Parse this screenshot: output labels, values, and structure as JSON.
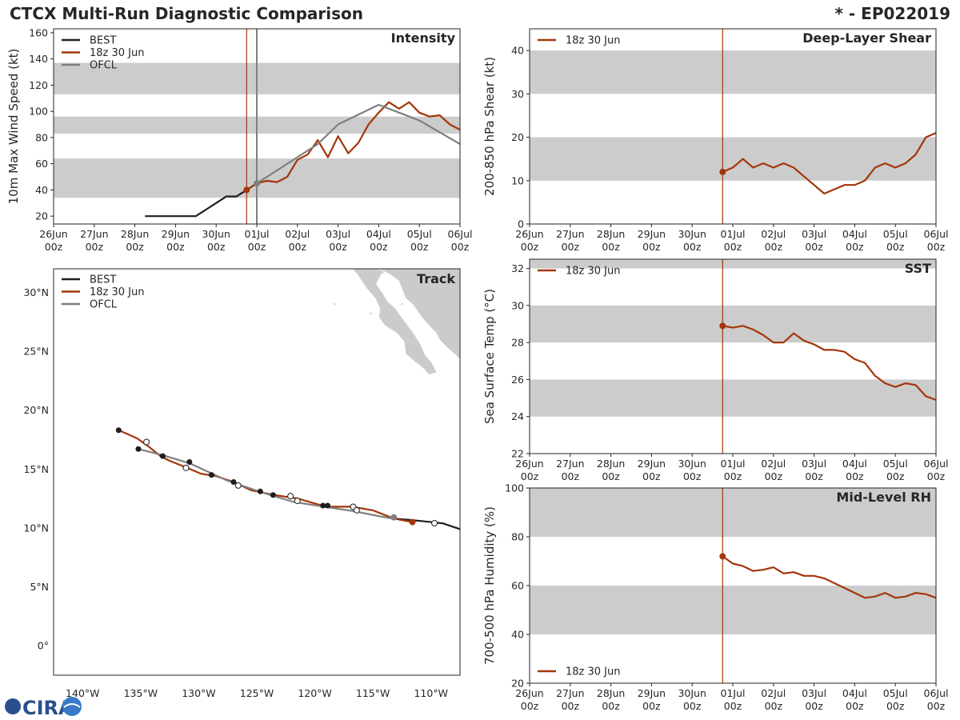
{
  "header": {
    "title": "CTCX Multi-Run Diagnostic Comparison",
    "storm_id": "* - EP022019"
  },
  "colors": {
    "best": "#1e1e1e",
    "run": "#a3360a",
    "ofcl": "#7f7f7f",
    "band": "#cccccc",
    "land": "#cbcbcb"
  },
  "time_axis": {
    "ticks": [
      {
        "day": "26Jun",
        "hour": "00z"
      },
      {
        "day": "27Jun",
        "hour": "00z"
      },
      {
        "day": "28Jun",
        "hour": "00z"
      },
      {
        "day": "29Jun",
        "hour": "00z"
      },
      {
        "day": "30Jun",
        "hour": "00z"
      },
      {
        "day": "01Jul",
        "hour": "00z"
      },
      {
        "day": "02Jul",
        "hour": "00z"
      },
      {
        "day": "03Jul",
        "hour": "00z"
      },
      {
        "day": "04Jul",
        "hour": "00z"
      },
      {
        "day": "05Jul",
        "hour": "00z"
      },
      {
        "day": "06Jul",
        "hour": "00z"
      }
    ],
    "xlim_hours": [
      0,
      240
    ],
    "init_hour": 114,
    "ofcl_init_hour": 120
  },
  "chart_data": [
    {
      "id": "intensity",
      "type": "line",
      "title": "Intensity",
      "ylabel": "10m Max Wind Speed (kt)",
      "ylim": [
        14,
        163
      ],
      "yticks": [
        20,
        40,
        60,
        80,
        100,
        120,
        140,
        160
      ],
      "bands": [
        [
          34,
          64
        ],
        [
          83,
          96
        ],
        [
          113,
          137
        ]
      ],
      "legend": [
        "BEST",
        "18z 30 Jun",
        "OFCL"
      ],
      "series": [
        {
          "name": "BEST",
          "color_key": "best",
          "x": [
            54,
            60,
            66,
            72,
            78,
            84,
            90,
            96,
            102,
            108,
            114,
            120
          ],
          "y": [
            20,
            20,
            20,
            20,
            20,
            20,
            25,
            30,
            35,
            35,
            40,
            45
          ]
        },
        {
          "name": "18z 30 Jun",
          "color_key": "run",
          "x": [
            114,
            120,
            126,
            132,
            138,
            144,
            150,
            156,
            162,
            168,
            174,
            180,
            186,
            192,
            198,
            204,
            210,
            216,
            222,
            228,
            234,
            240
          ],
          "y": [
            40,
            45,
            47,
            46,
            50,
            63,
            67,
            78,
            65,
            81,
            68,
            76,
            90,
            99,
            107,
            102,
            107,
            99,
            96,
            97,
            90,
            86
          ]
        },
        {
          "name": "OFCL",
          "color_key": "ofcl",
          "x": [
            120,
            132,
            144,
            156,
            168,
            192,
            204,
            216,
            240
          ],
          "y": [
            45,
            55,
            65,
            75,
            90,
            105,
            99,
            93,
            75
          ]
        }
      ],
      "markers": [
        {
          "series": "18z 30 Jun",
          "x": 114,
          "y": 40
        },
        {
          "series": "OFCL",
          "x": 120,
          "y": 45
        }
      ]
    },
    {
      "id": "shear",
      "type": "line",
      "title": "Deep-Layer Shear",
      "ylabel": "200-850 hPa Shear (kt)",
      "ylim": [
        0,
        45
      ],
      "yticks": [
        0,
        10,
        20,
        30,
        40
      ],
      "bands": [
        [
          10,
          20
        ],
        [
          30,
          40
        ]
      ],
      "legend": [
        "18z 30 Jun"
      ],
      "series": [
        {
          "name": "18z 30 Jun",
          "color_key": "run",
          "x": [
            114,
            120,
            126,
            132,
            138,
            144,
            150,
            156,
            162,
            168,
            174,
            180,
            186,
            192,
            198,
            204,
            210,
            216,
            222,
            228,
            234,
            240
          ],
          "y": [
            12,
            13,
            15,
            13,
            14,
            13,
            14,
            13,
            11,
            9,
            7,
            8,
            9,
            9,
            10,
            13,
            14,
            13,
            14,
            16,
            20,
            21
          ]
        }
      ],
      "markers": [
        {
          "series": "18z 30 Jun",
          "x": 114,
          "y": 12
        }
      ]
    },
    {
      "id": "sst",
      "type": "line",
      "title": "SST",
      "ylabel": "Sea Surface Temp (°C)",
      "ylim": [
        22,
        32.5
      ],
      "yticks": [
        22,
        24,
        26,
        28,
        30,
        32
      ],
      "bands": [
        [
          24,
          26
        ],
        [
          28,
          30
        ],
        [
          32,
          32.5
        ]
      ],
      "legend": [
        "18z 30 Jun"
      ],
      "series": [
        {
          "name": "18z 30 Jun",
          "color_key": "run",
          "x": [
            114,
            120,
            126,
            132,
            138,
            144,
            150,
            156,
            162,
            168,
            174,
            180,
            186,
            192,
            198,
            204,
            210,
            216,
            222,
            228,
            234,
            240
          ],
          "y": [
            28.9,
            28.8,
            28.9,
            28.7,
            28.4,
            28.0,
            28.0,
            28.5,
            28.1,
            27.9,
            27.6,
            27.6,
            27.5,
            27.1,
            26.9,
            26.2,
            25.8,
            25.6,
            25.8,
            25.7,
            25.1,
            24.9
          ]
        }
      ],
      "markers": [
        {
          "series": "18z 30 Jun",
          "x": 114,
          "y": 28.9
        }
      ]
    },
    {
      "id": "rh",
      "type": "line",
      "title": "Mid-Level RH",
      "ylabel": "700-500 hPa Humidity (%)",
      "ylim": [
        20,
        100
      ],
      "yticks": [
        20,
        40,
        60,
        80,
        100
      ],
      "bands": [
        [
          40,
          60
        ],
        [
          80,
          100
        ]
      ],
      "legend": [
        "18z 30 Jun"
      ],
      "series": [
        {
          "name": "18z 30 Jun",
          "color_key": "run",
          "x": [
            114,
            120,
            126,
            132,
            138,
            144,
            150,
            156,
            162,
            168,
            174,
            180,
            186,
            192,
            198,
            204,
            210,
            216,
            222,
            228,
            234,
            240
          ],
          "y": [
            72,
            69,
            68,
            66,
            66.5,
            67.5,
            65,
            65.5,
            64,
            64,
            63,
            61,
            59,
            57,
            55,
            55.5,
            57,
            55,
            55.5,
            57,
            56.5,
            55
          ]
        }
      ],
      "markers": [
        {
          "series": "18z 30 Jun",
          "x": 114,
          "y": 72
        }
      ]
    },
    {
      "id": "track",
      "type": "scatter",
      "title": "Track",
      "xlim": [
        -142.5,
        -107.5
      ],
      "ylim": [
        -2.5,
        32
      ],
      "xticks": [
        {
          "v": -140,
          "label": "140°W"
        },
        {
          "v": -135,
          "label": "135°W"
        },
        {
          "v": -130,
          "label": "130°W"
        },
        {
          "v": -125,
          "label": "125°W"
        },
        {
          "v": -120,
          "label": "120°W"
        },
        {
          "v": -115,
          "label": "115°W"
        },
        {
          "v": -110,
          "label": "110°W"
        }
      ],
      "yticks": [
        {
          "v": 0,
          "label": "0°"
        },
        {
          "v": 5,
          "label": "5°N"
        },
        {
          "v": 10,
          "label": "10°N"
        },
        {
          "v": 15,
          "label": "15°N"
        },
        {
          "v": 20,
          "label": "20°N"
        },
        {
          "v": 25,
          "label": "25°N"
        },
        {
          "v": 30,
          "label": "30°N"
        }
      ],
      "legend": [
        "BEST",
        "18z 30 Jun",
        "OFCL"
      ],
      "series": [
        {
          "name": "BEST",
          "color_key": "best",
          "lon": [
            -107.5,
            -109,
            -110.5,
            -112,
            -113.3
          ],
          "lat": [
            9.9,
            10.4,
            10.55,
            10.7,
            10.8
          ]
        },
        {
          "name": "18z 30 Jun",
          "color_key": "run",
          "lon": [
            -111.6,
            -113.2,
            -115,
            -116.8,
            -119,
            -121.5,
            -123.5,
            -125.5,
            -127,
            -128.5,
            -129.8,
            -131,
            -132.5,
            -133.3,
            -134.3,
            -135.3,
            -136.2,
            -136.9
          ],
          "lat": [
            10.5,
            10.8,
            11.5,
            11.8,
            11.8,
            12.5,
            12.8,
            13.2,
            13.9,
            14.4,
            14.6,
            15.1,
            15.7,
            16.1,
            16.9,
            17.6,
            18.0,
            18.3
          ]
        },
        {
          "name": "OFCL",
          "color_key": "ofcl",
          "lon": [
            -113.3,
            -114.5,
            -116.5,
            -119.2,
            -121.8,
            -124.5,
            -127.5,
            -130.8,
            -133.2,
            -135.2
          ],
          "lat": [
            10.8,
            11.0,
            11.4,
            11.8,
            12.2,
            13.0,
            14.0,
            15.5,
            16.2,
            16.7
          ]
        }
      ],
      "points": [
        {
          "kind": "black",
          "lon": -136.9,
          "lat": 18.3
        },
        {
          "kind": "black",
          "lon": -135.2,
          "lat": 16.7
        },
        {
          "kind": "black",
          "lon": -133.1,
          "lat": 16.1
        },
        {
          "kind": "black",
          "lon": -130.8,
          "lat": 15.6
        },
        {
          "kind": "black",
          "lon": -128.9,
          "lat": 14.5
        },
        {
          "kind": "black",
          "lon": -127.0,
          "lat": 13.9
        },
        {
          "kind": "black",
          "lon": -124.7,
          "lat": 13.1
        },
        {
          "kind": "black",
          "lon": -123.6,
          "lat": 12.8
        },
        {
          "kind": "black",
          "lon": -119.3,
          "lat": 11.9
        },
        {
          "kind": "black",
          "lon": -118.9,
          "lat": 11.9
        },
        {
          "kind": "open",
          "lon": -134.5,
          "lat": 17.3
        },
        {
          "kind": "open",
          "lon": -131.1,
          "lat": 15.1
        },
        {
          "kind": "open",
          "lon": -126.6,
          "lat": 13.6
        },
        {
          "kind": "open",
          "lon": -122.1,
          "lat": 12.7
        },
        {
          "kind": "open",
          "lon": -121.5,
          "lat": 12.3
        },
        {
          "kind": "open",
          "lon": -116.7,
          "lat": 11.8
        },
        {
          "kind": "open",
          "lon": -116.4,
          "lat": 11.5
        },
        {
          "kind": "open",
          "lon": -109.7,
          "lat": 10.4
        },
        {
          "kind": "gray",
          "lon": -113.2,
          "lat": 10.9
        },
        {
          "kind": "run",
          "lon": -111.6,
          "lat": 10.5
        }
      ]
    }
  ],
  "logo": {
    "text": "CIRA"
  }
}
